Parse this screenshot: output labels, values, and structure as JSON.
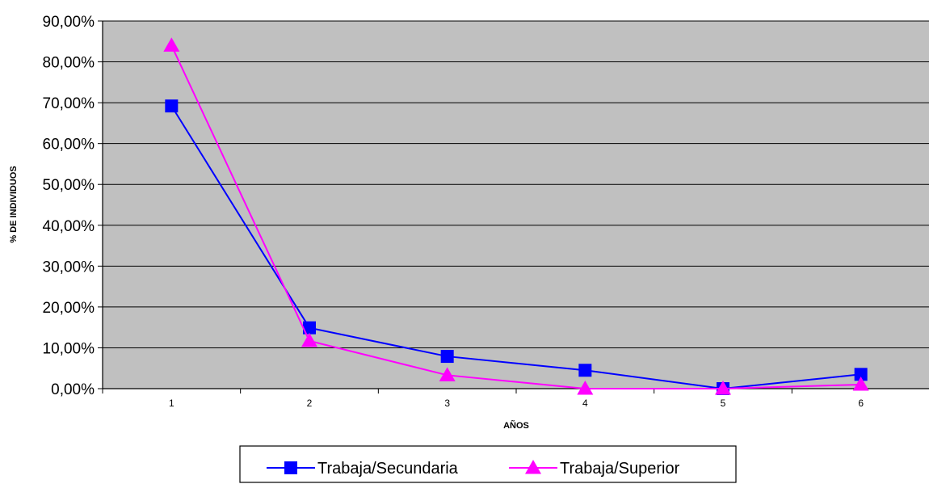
{
  "chart_data": {
    "type": "line",
    "xlabel": "AÑOS",
    "ylabel": "% DE INDIVIDUOS",
    "x": [
      1,
      2,
      3,
      4,
      5,
      6
    ],
    "x_tick_labels": [
      "1",
      "2",
      "3",
      "4",
      "5",
      "6"
    ],
    "ylim": [
      0,
      90
    ],
    "y_tick_labels": [
      "0,00%",
      "10,00%",
      "20,00%",
      "30,00%",
      "40,00%",
      "50,00%",
      "60,00%",
      "70,00%",
      "80,00%",
      "90,00%"
    ],
    "grid": "horizontal",
    "legend_position": "bottom",
    "plot_background": "#c0c0c0",
    "series": [
      {
        "name": "Trabaja/Secundaria",
        "values": [
          69.2,
          14.9,
          7.9,
          4.5,
          0.0,
          3.5
        ],
        "color": "#0000ff",
        "marker": "square"
      },
      {
        "name": "Trabaja/Superior",
        "values": [
          84.0,
          11.7,
          3.3,
          0.0,
          0.0,
          1.0
        ],
        "color": "#ff00ff",
        "marker": "triangle"
      }
    ]
  }
}
